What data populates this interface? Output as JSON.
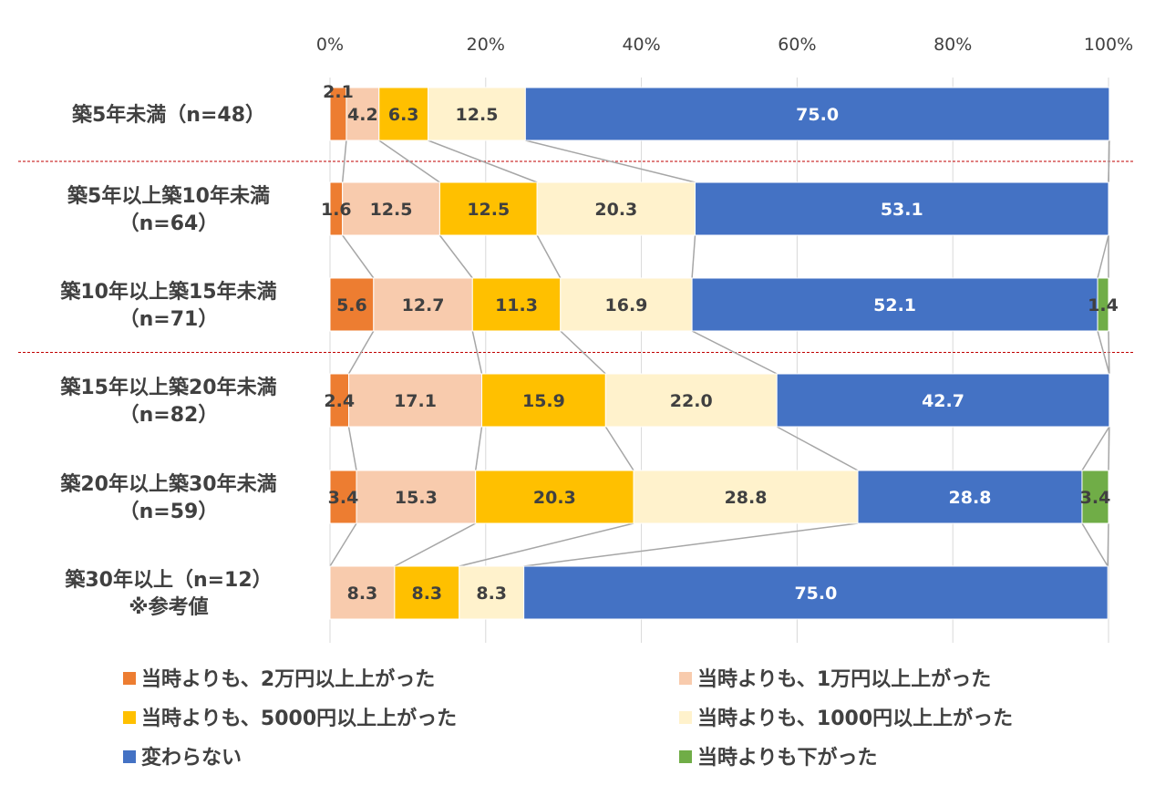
{
  "chart_data": {
    "type": "bar",
    "orientation": "horizontal",
    "stacked": true,
    "normalized_percent": true,
    "xlim": [
      0,
      100
    ],
    "x_ticks": [
      "0%",
      "20%",
      "40%",
      "60%",
      "80%",
      "100%"
    ],
    "categories": [
      [
        "築5年未満（n=48）"
      ],
      [
        "築5年以上築10年未満",
        "（n=64）"
      ],
      [
        "築10年以上築15年未満",
        "（n=71）"
      ],
      [
        "築15年以上築20年未満",
        "（n=82）"
      ],
      [
        "築20年以上築30年未満",
        "（n=59）"
      ],
      [
        "築30年以上（n=12）",
        "※参考値"
      ]
    ],
    "series": [
      {
        "name": "当時よりも、2万円以上上がった",
        "color": "#ED7D31",
        "label_color": "#404040",
        "values": [
          2.1,
          1.6,
          5.6,
          2.4,
          3.4,
          0
        ],
        "labels": [
          "2.1",
          "1.6",
          "5.6",
          "2.4",
          "3.4",
          ""
        ]
      },
      {
        "name": "当時よりも、1万円以上上がった",
        "color": "#F8CBAD",
        "label_color": "#404040",
        "values": [
          4.2,
          12.5,
          12.7,
          17.1,
          15.3,
          8.3
        ],
        "labels": [
          "4.2",
          "12.5",
          "12.7",
          "17.1",
          "15.3",
          "8.3"
        ]
      },
      {
        "name": "当時よりも、5000円以上上がった",
        "color": "#FFC000",
        "label_color": "#404040",
        "values": [
          6.3,
          12.5,
          11.3,
          15.9,
          20.3,
          8.3
        ],
        "labels": [
          "6.3",
          "12.5",
          "11.3",
          "15.9",
          "20.3",
          "8.3"
        ]
      },
      {
        "name": "当時よりも、1000円以上上がった",
        "color": "#FFF2CC",
        "label_color": "#404040",
        "values": [
          12.5,
          20.3,
          16.9,
          22.0,
          28.8,
          8.3
        ],
        "labels": [
          "12.5",
          "20.3",
          "16.9",
          "22.0",
          "28.8",
          "8.3"
        ]
      },
      {
        "name": "変わらない",
        "color": "#4472C4",
        "label_color": "#ffffff",
        "values": [
          75.0,
          53.1,
          52.1,
          42.7,
          28.8,
          75.0
        ],
        "labels": [
          "75.0",
          "53.1",
          "52.1",
          "42.7",
          "28.8",
          "75.0"
        ]
      },
      {
        "name": "当時よりも下がった",
        "color": "#70AD47",
        "label_color": "#404040",
        "values": [
          0,
          0,
          1.4,
          0,
          3.4,
          0
        ],
        "labels": [
          "",
          "",
          "1.4",
          "",
          "3.4",
          ""
        ]
      }
    ],
    "title": "",
    "xlabel": "",
    "ylabel": "",
    "legend_position": "bottom",
    "grid": "vertical",
    "series_lines": true,
    "separator_lines_after_rows": [
      0,
      2
    ]
  }
}
